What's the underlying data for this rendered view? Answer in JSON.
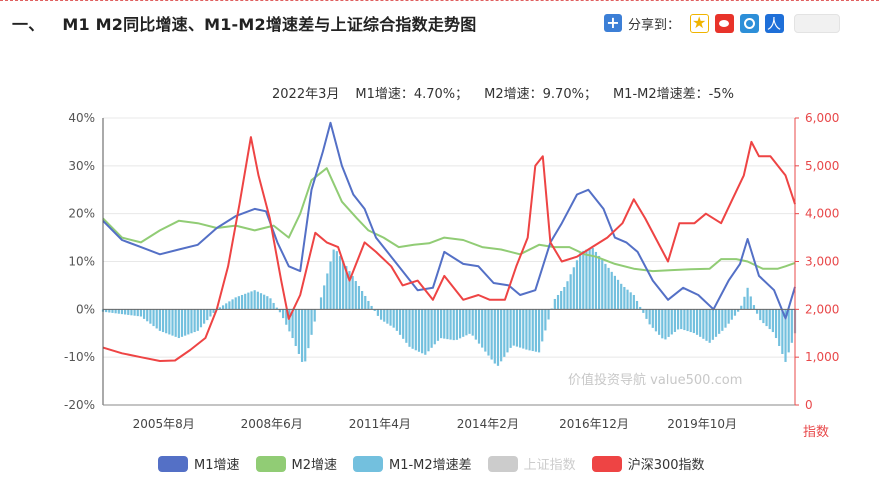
{
  "header": {
    "section_number": "一、",
    "title": "M1 M2同比增速、M1-M2增速差与上证综合指数走势图",
    "share_label": "分享到："
  },
  "info_bar": {
    "date": "2022年3月",
    "m1": "M1增速：4.70%；",
    "m2": "M2增速：9.70%；",
    "diff": "M1-M2增速差：-5%"
  },
  "watermark": "价值投资导航 value500.com",
  "colors": {
    "m1": "#5470c6",
    "m2": "#91cc75",
    "diff": "#73c0de",
    "shanghai": "#cccccc",
    "hs300": "#ee4444",
    "grid": "#e8e8e8",
    "right_axis": "#e8484a"
  },
  "chart_data": {
    "type": "line",
    "x_ticks": [
      "2005年8月",
      "2008年6月",
      "2011年4月",
      "2014年2月",
      "2016年12月",
      "2019年10月"
    ],
    "left_axis": {
      "ticks": [
        "40%",
        "30%",
        "20%",
        "10%",
        "0%",
        "-10%",
        "-20%"
      ],
      "ylim": [
        -20,
        40
      ]
    },
    "right_axis": {
      "label": "指数",
      "ticks": [
        "6,000",
        "5,000",
        "4,000",
        "3,000",
        "2,000",
        "1,000",
        "0"
      ],
      "ylim": [
        0,
        6000
      ]
    },
    "x_range": [
      2004.0,
      2022.25
    ],
    "grid": true,
    "legend_placement": "bottom",
    "series": [
      {
        "name": "M1增速",
        "axis": "left",
        "points": [
          [
            2004.0,
            18.5
          ],
          [
            2004.5,
            14.5
          ],
          [
            2005.0,
            13.0
          ],
          [
            2005.5,
            11.5
          ],
          [
            2006.0,
            12.5
          ],
          [
            2006.5,
            13.5
          ],
          [
            2007.0,
            17.0
          ],
          [
            2007.5,
            19.5
          ],
          [
            2008.0,
            21.0
          ],
          [
            2008.3,
            20.5
          ],
          [
            2008.6,
            14.0
          ],
          [
            2008.9,
            9.0
          ],
          [
            2009.2,
            8.0
          ],
          [
            2009.5,
            25.0
          ],
          [
            2009.8,
            33.0
          ],
          [
            2010.0,
            39.0
          ],
          [
            2010.3,
            30.0
          ],
          [
            2010.6,
            24.0
          ],
          [
            2010.9,
            21.0
          ],
          [
            2011.2,
            15.0
          ],
          [
            2011.6,
            11.0
          ],
          [
            2011.9,
            8.0
          ],
          [
            2012.3,
            4.0
          ],
          [
            2012.7,
            4.5
          ],
          [
            2013.0,
            12.0
          ],
          [
            2013.5,
            9.5
          ],
          [
            2013.9,
            9.0
          ],
          [
            2014.3,
            5.5
          ],
          [
            2014.7,
            5.0
          ],
          [
            2015.0,
            3.0
          ],
          [
            2015.4,
            4.0
          ],
          [
            2015.8,
            14.0
          ],
          [
            2016.1,
            18.0
          ],
          [
            2016.5,
            24.0
          ],
          [
            2016.8,
            25.0
          ],
          [
            2017.2,
            21.0
          ],
          [
            2017.5,
            15.0
          ],
          [
            2017.8,
            14.0
          ],
          [
            2018.1,
            12.0
          ],
          [
            2018.5,
            6.0
          ],
          [
            2018.9,
            2.0
          ],
          [
            2019.3,
            4.5
          ],
          [
            2019.7,
            3.0
          ],
          [
            2020.1,
            0.0
          ],
          [
            2020.5,
            6.0
          ],
          [
            2020.8,
            9.5
          ],
          [
            2021.0,
            14.7
          ],
          [
            2021.3,
            7.0
          ],
          [
            2021.7,
            4.0
          ],
          [
            2022.0,
            -1.9
          ],
          [
            2022.25,
            4.7
          ]
        ]
      },
      {
        "name": "M2增速",
        "axis": "left",
        "points": [
          [
            2004.0,
            19.0
          ],
          [
            2004.5,
            15.0
          ],
          [
            2005.0,
            14.0
          ],
          [
            2005.5,
            16.5
          ],
          [
            2006.0,
            18.5
          ],
          [
            2006.5,
            18.0
          ],
          [
            2007.0,
            17.0
          ],
          [
            2007.5,
            17.5
          ],
          [
            2008.0,
            16.5
          ],
          [
            2008.5,
            17.5
          ],
          [
            2008.9,
            15.0
          ],
          [
            2009.2,
            20.0
          ],
          [
            2009.5,
            27.0
          ],
          [
            2009.9,
            29.5
          ],
          [
            2010.3,
            22.5
          ],
          [
            2010.7,
            19.0
          ],
          [
            2011.0,
            16.5
          ],
          [
            2011.4,
            15.0
          ],
          [
            2011.8,
            13.0
          ],
          [
            2012.2,
            13.5
          ],
          [
            2012.6,
            13.8
          ],
          [
            2013.0,
            15.0
          ],
          [
            2013.5,
            14.5
          ],
          [
            2014.0,
            13.0
          ],
          [
            2014.5,
            12.5
          ],
          [
            2015.0,
            11.5
          ],
          [
            2015.5,
            13.5
          ],
          [
            2015.9,
            13.0
          ],
          [
            2016.3,
            13.0
          ],
          [
            2016.7,
            11.5
          ],
          [
            2017.0,
            11.0
          ],
          [
            2017.5,
            9.5
          ],
          [
            2018.0,
            8.5
          ],
          [
            2018.5,
            8.0
          ],
          [
            2019.0,
            8.2
          ],
          [
            2019.5,
            8.4
          ],
          [
            2020.0,
            8.5
          ],
          [
            2020.3,
            10.5
          ],
          [
            2020.7,
            10.5
          ],
          [
            2021.0,
            10.0
          ],
          [
            2021.4,
            8.5
          ],
          [
            2021.8,
            8.5
          ],
          [
            2022.0,
            9.0
          ],
          [
            2022.25,
            9.7
          ]
        ]
      },
      {
        "name": "M1-M2增速差",
        "axis": "left",
        "style": "bar",
        "points": [
          [
            2004.0,
            -0.5
          ],
          [
            2004.5,
            -1.0
          ],
          [
            2005.0,
            -1.5
          ],
          [
            2005.5,
            -4.5
          ],
          [
            2006.0,
            -6.0
          ],
          [
            2006.5,
            -4.5
          ],
          [
            2007.0,
            0.0
          ],
          [
            2007.5,
            2.5
          ],
          [
            2008.0,
            4.0
          ],
          [
            2008.4,
            2.5
          ],
          [
            2008.7,
            -1.0
          ],
          [
            2009.0,
            -6.0
          ],
          [
            2009.3,
            -12.0
          ],
          [
            2009.6,
            -2.0
          ],
          [
            2009.9,
            7.0
          ],
          [
            2010.1,
            13.0
          ],
          [
            2010.5,
            8.0
          ],
          [
            2010.9,
            3.0
          ],
          [
            2011.3,
            -2.0
          ],
          [
            2011.7,
            -4.0
          ],
          [
            2012.1,
            -8.0
          ],
          [
            2012.5,
            -9.5
          ],
          [
            2012.9,
            -6.0
          ],
          [
            2013.3,
            -6.5
          ],
          [
            2013.7,
            -5.0
          ],
          [
            2014.0,
            -8.0
          ],
          [
            2014.4,
            -12.0
          ],
          [
            2014.8,
            -7.5
          ],
          [
            2015.2,
            -8.5
          ],
          [
            2015.5,
            -9.0
          ],
          [
            2015.9,
            2.0
          ],
          [
            2016.2,
            5.0
          ],
          [
            2016.6,
            12.0
          ],
          [
            2016.9,
            13.0
          ],
          [
            2017.3,
            9.0
          ],
          [
            2017.7,
            5.0
          ],
          [
            2018.0,
            3.0
          ],
          [
            2018.4,
            -3.0
          ],
          [
            2018.8,
            -6.5
          ],
          [
            2019.2,
            -4.0
          ],
          [
            2019.6,
            -5.0
          ],
          [
            2020.0,
            -7.0
          ],
          [
            2020.4,
            -4.0
          ],
          [
            2020.8,
            0.0
          ],
          [
            2021.0,
            4.5
          ],
          [
            2021.3,
            -2.0
          ],
          [
            2021.7,
            -5.0
          ],
          [
            2022.0,
            -11.0
          ],
          [
            2022.25,
            -5.0
          ]
        ]
      },
      {
        "name": "上证指数",
        "axis": "right",
        "hidden": true,
        "points": []
      },
      {
        "name": "沪深300指数",
        "axis": "right",
        "points": [
          [
            2004.0,
            1200
          ],
          [
            2004.5,
            1080
          ],
          [
            2005.0,
            1000
          ],
          [
            2005.5,
            920
          ],
          [
            2005.9,
            930
          ],
          [
            2006.3,
            1150
          ],
          [
            2006.7,
            1400
          ],
          [
            2007.0,
            2000
          ],
          [
            2007.3,
            2900
          ],
          [
            2007.6,
            4200
          ],
          [
            2007.9,
            5600
          ],
          [
            2008.1,
            4800
          ],
          [
            2008.4,
            3900
          ],
          [
            2008.7,
            2600
          ],
          [
            2008.9,
            1800
          ],
          [
            2009.2,
            2300
          ],
          [
            2009.6,
            3600
          ],
          [
            2009.9,
            3400
          ],
          [
            2010.2,
            3300
          ],
          [
            2010.5,
            2600
          ],
          [
            2010.9,
            3400
          ],
          [
            2011.2,
            3200
          ],
          [
            2011.6,
            2900
          ],
          [
            2011.9,
            2500
          ],
          [
            2012.3,
            2600
          ],
          [
            2012.7,
            2200
          ],
          [
            2013.0,
            2700
          ],
          [
            2013.5,
            2200
          ],
          [
            2013.9,
            2300
          ],
          [
            2014.2,
            2200
          ],
          [
            2014.6,
            2200
          ],
          [
            2014.9,
            2900
          ],
          [
            2015.2,
            3500
          ],
          [
            2015.4,
            5000
          ],
          [
            2015.6,
            5200
          ],
          [
            2015.8,
            3400
          ],
          [
            2016.1,
            3000
          ],
          [
            2016.5,
            3100
          ],
          [
            2016.9,
            3300
          ],
          [
            2017.3,
            3500
          ],
          [
            2017.7,
            3800
          ],
          [
            2018.0,
            4300
          ],
          [
            2018.3,
            3900
          ],
          [
            2018.7,
            3300
          ],
          [
            2018.9,
            3000
          ],
          [
            2019.2,
            3800
          ],
          [
            2019.6,
            3800
          ],
          [
            2019.9,
            4000
          ],
          [
            2020.3,
            3800
          ],
          [
            2020.6,
            4300
          ],
          [
            2020.9,
            4800
          ],
          [
            2021.1,
            5500
          ],
          [
            2021.3,
            5200
          ],
          [
            2021.6,
            5200
          ],
          [
            2021.9,
            4900
          ],
          [
            2022.0,
            4800
          ],
          [
            2022.25,
            4200
          ]
        ]
      }
    ]
  }
}
